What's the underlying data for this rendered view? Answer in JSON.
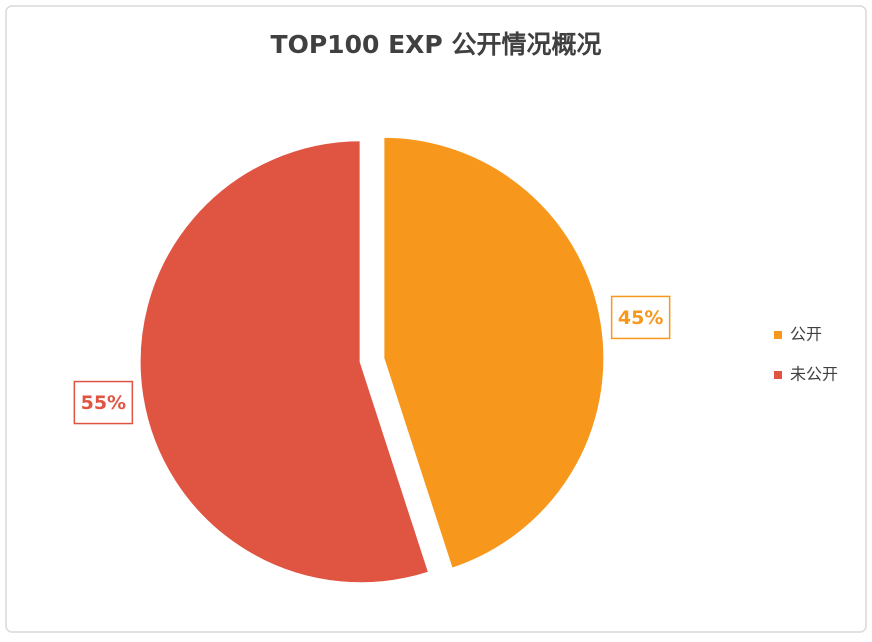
{
  "chart_data": {
    "type": "pie",
    "title": "TOP100 EXP 公开情况概况",
    "categories": [
      "公开",
      "未公开"
    ],
    "values": [
      45,
      55
    ],
    "value_labels": [
      "45%",
      "55%"
    ],
    "colors": [
      "#f7981d",
      "#e05442"
    ],
    "legend": "right"
  }
}
